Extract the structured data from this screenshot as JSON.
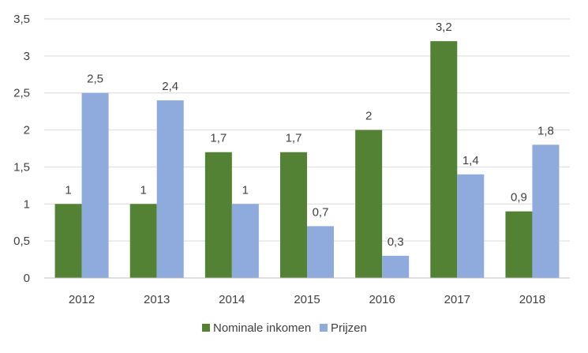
{
  "chart_data": {
    "type": "bar",
    "categories": [
      "2012",
      "2013",
      "2014",
      "2015",
      "2016",
      "2017",
      "2018"
    ],
    "series": [
      {
        "name": "Nominale inkomen",
        "color": "#548235",
        "values": [
          1,
          1,
          1.7,
          1.7,
          2,
          3.2,
          0.9
        ],
        "labels": [
          "1",
          "1",
          "1,7",
          "1,7",
          "2",
          "3,2",
          "0,9"
        ]
      },
      {
        "name": "Prijzen",
        "color": "#8FAADC",
        "values": [
          2.5,
          2.4,
          1,
          0.7,
          0.3,
          1.4,
          1.8
        ],
        "labels": [
          "2,5",
          "2,4",
          "1",
          "0,7",
          "0,3",
          "1,4",
          "1,8"
        ]
      }
    ],
    "ylim": [
      0,
      3.5
    ],
    "yticks": [
      0,
      0.5,
      1,
      1.5,
      2,
      2.5,
      3,
      3.5
    ],
    "ytick_labels": [
      "0",
      "0,5",
      "1",
      "1,5",
      "2",
      "2,5",
      "3",
      "3,5"
    ],
    "grid": true,
    "gridline_color": "#D9D9D9",
    "legend_position": "bottom",
    "title": "",
    "xlabel": "",
    "ylabel": ""
  }
}
